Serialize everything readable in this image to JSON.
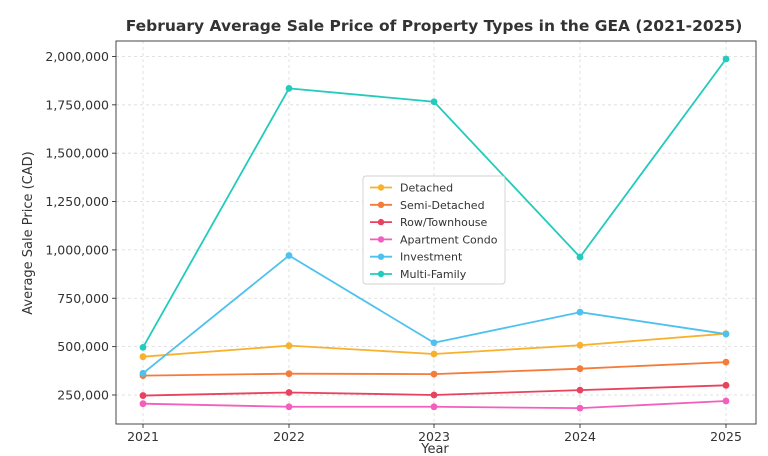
{
  "chart_data": {
    "type": "line",
    "title": "February Average Sale Price of Property Types in the GEA (2021-2025)",
    "xlabel": "Year",
    "ylabel": "Average Sale Price (CAD)",
    "x": [
      2021,
      2022,
      2023,
      2024,
      2025
    ],
    "x_tick_labels": [
      "2021",
      "2022",
      "2023",
      "2024",
      "2025"
    ],
    "ylim": [
      100000,
      2080000
    ],
    "y_ticks": [
      250000,
      500000,
      750000,
      1000000,
      1250000,
      1500000,
      1750000,
      2000000
    ],
    "y_tick_labels": [
      "250,000",
      "500,000",
      "750,000",
      "1,000,000",
      "1,250,000",
      "1,500,000",
      "1,750,000",
      "2,000,000"
    ],
    "grid": true,
    "legend_position": "center",
    "series": [
      {
        "name": "Detached",
        "color": "#f8b12d",
        "values": [
          448000,
          505000,
          462000,
          507000,
          567000
        ]
      },
      {
        "name": "Semi-Detached",
        "color": "#f47b3a",
        "values": [
          350000,
          360000,
          358000,
          386000,
          420000
        ]
      },
      {
        "name": "Row/Townhouse",
        "color": "#e8435e",
        "values": [
          247000,
          263000,
          250000,
          275000,
          300000
        ]
      },
      {
        "name": "Apartment Condo",
        "color": "#f25fbc",
        "values": [
          205000,
          189000,
          189000,
          182000,
          219000
        ]
      },
      {
        "name": "Investment",
        "color": "#4ec1ef",
        "values": [
          362000,
          971000,
          520000,
          678000,
          565000
        ]
      },
      {
        "name": "Multi-Family",
        "color": "#22cbbc",
        "values": [
          496000,
          1835000,
          1766000,
          963000,
          1987000
        ]
      }
    ]
  }
}
